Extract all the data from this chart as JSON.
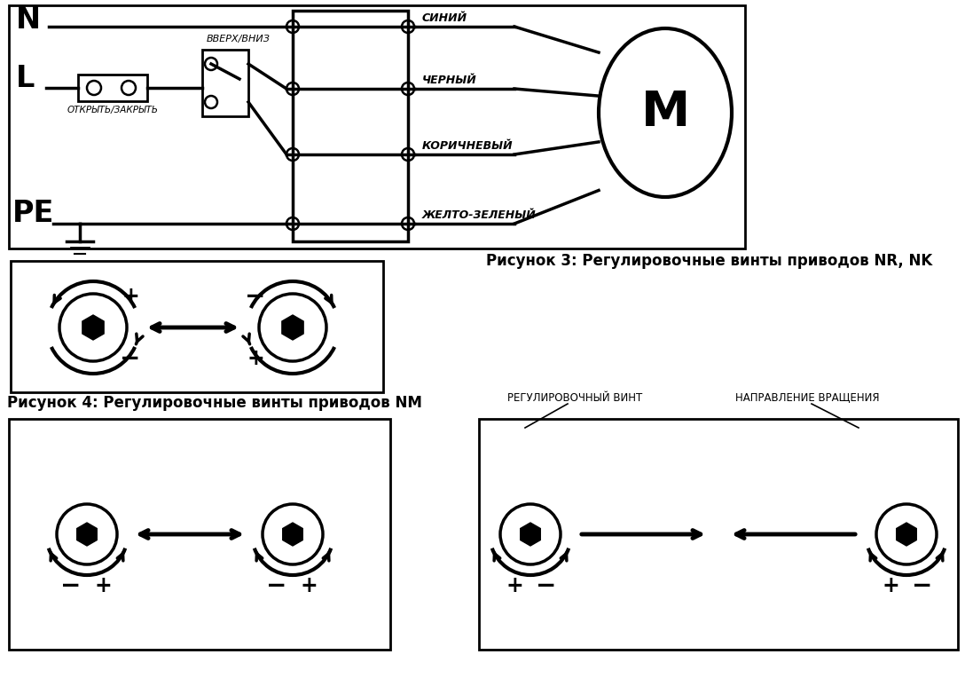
{
  "bg": "#ffffff",
  "lc": "#000000",
  "fw": 10.88,
  "fh": 7.82,
  "синий": "СИНИЙ",
  "черный": "ЧЕРНЫЙ",
  "коричневый": "КОРИЧНЕВЫЙ",
  "желто": "ЖЕЛТО-ЗЕЛЕНЫЙ",
  "N": "N",
  "L": "L",
  "PE": "PE",
  "vverh": "ВВЕРХ/ВНИЗ",
  "otkr": "ОТКРЫТЬ/ЗАКРЫТЬ",
  "M": "М",
  "cap3": "Рисунок 3: Регулировочные винты приводов NR, NK",
  "cap4": "Рисунок 4: Регулировочные винты приводов NM",
  "reg": "РЕГУЛИРОВОЧНЫЙ ВИНТ",
  "napr": "НАПРАВЛЕНИЕ ВРАЩЕНИЯ"
}
